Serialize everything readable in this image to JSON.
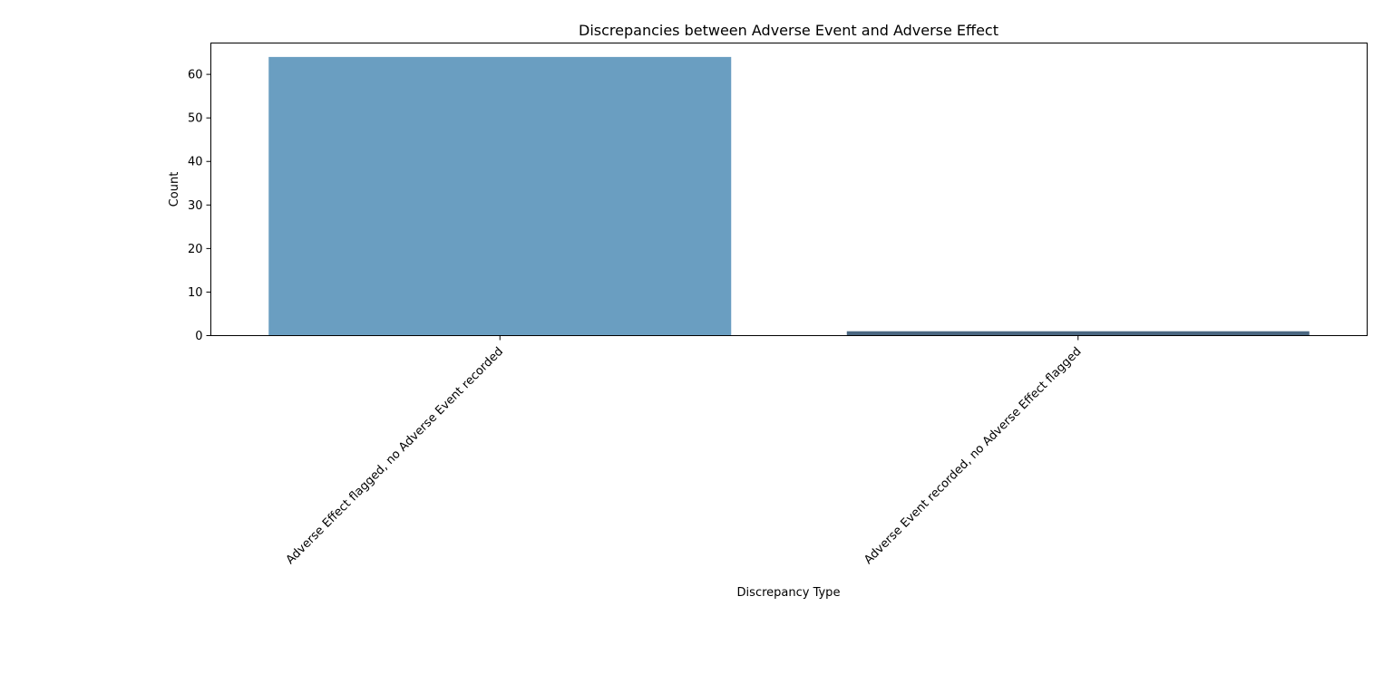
{
  "chart_data": {
    "type": "bar",
    "title": "Discrepancies between Adverse Event and Adverse Effect",
    "xlabel": "Discrepancy Type",
    "ylabel": "Count",
    "categories": [
      "Adverse Effect flagged, no Adverse Event recorded",
      "Adverse Event recorded, no Adverse Effect flagged"
    ],
    "values": [
      64,
      1
    ],
    "colors": [
      "#6a9ec1",
      "#4a6781"
    ],
    "ylim": [
      0,
      67.2
    ],
    "yticks": [
      0,
      10,
      20,
      30,
      40,
      50,
      60
    ],
    "grid": false
  }
}
